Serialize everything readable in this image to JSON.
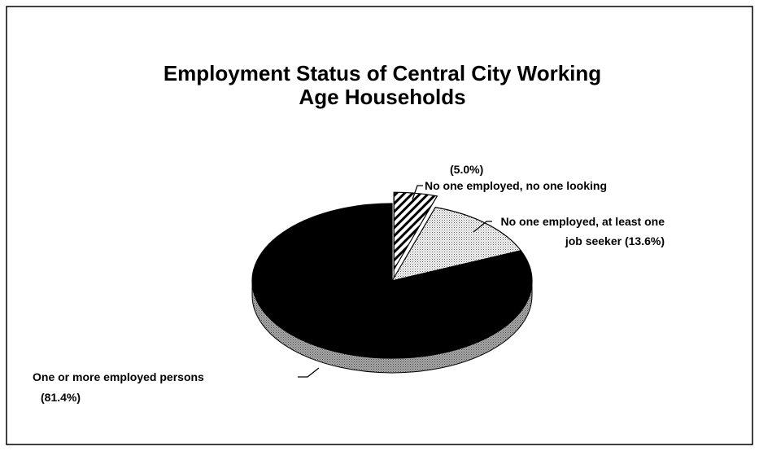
{
  "chart_data": {
    "type": "pie",
    "title": "Employment Status of Central City Working Age Households",
    "categories": [
      "No one employed, no one looking",
      "No one employed, at least one job seeker",
      "One or more employed persons"
    ],
    "values": [
      5.0,
      13.6,
      81.4
    ],
    "value_labels": [
      "(5.0%)",
      "(13.6%)",
      "(81.4%)"
    ],
    "colors": [
      "#000000",
      "#000000",
      "#000000"
    ]
  }
}
